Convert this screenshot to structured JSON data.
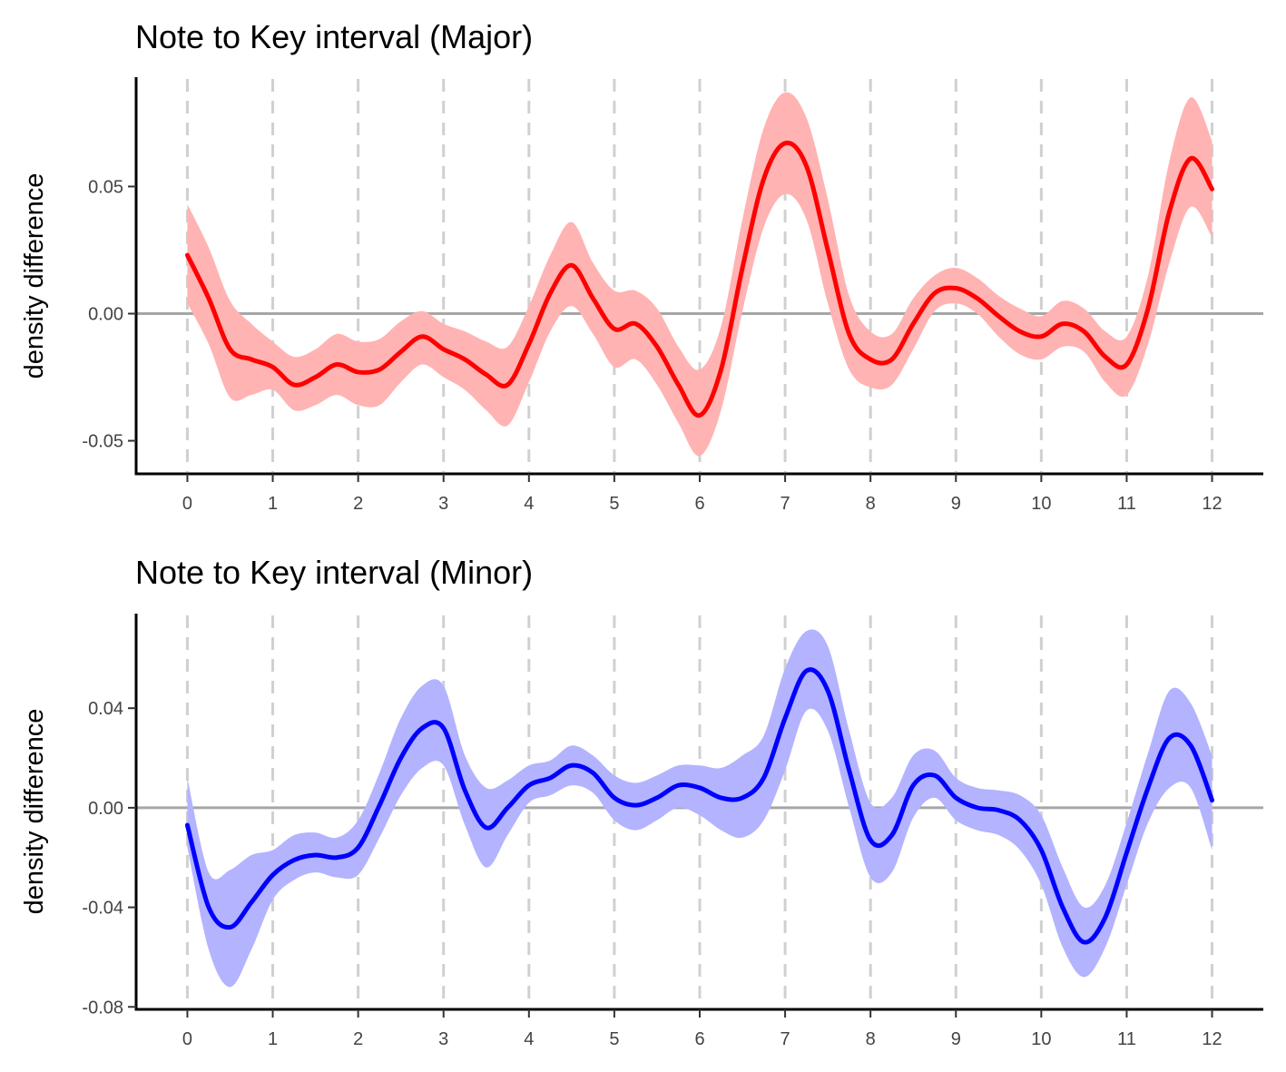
{
  "chart_data": [
    {
      "type": "line",
      "title": "Note to Key interval (Major)",
      "xlabel": "",
      "ylabel": "density difference",
      "xlim": [
        -0.6,
        12.6
      ],
      "ylim": [
        -0.063,
        0.093
      ],
      "x_ticks": [
        0,
        1,
        2,
        3,
        4,
        5,
        6,
        7,
        8,
        9,
        10,
        11,
        12
      ],
      "y_ticks": [
        -0.05,
        0.0,
        0.05
      ],
      "y_tick_labels": [
        "-0.05",
        "0.00",
        "0.05"
      ],
      "vertical_gridlines_at": [
        0,
        1,
        2,
        3,
        4,
        5,
        6,
        7,
        8,
        9,
        10,
        11,
        12
      ],
      "reference_line_y": 0,
      "colors": {
        "line": "#ff0000",
        "band": "#ffb3b3",
        "reference": "#a6a6a6",
        "grid": "#d0d0d0"
      },
      "series": [
        {
          "x": [
            0,
            0.25,
            0.5,
            0.75,
            1,
            1.25,
            1.5,
            1.75,
            2,
            2.25,
            2.5,
            2.75,
            3,
            3.25,
            3.5,
            3.75,
            4,
            4.25,
            4.5,
            4.75,
            5,
            5.25,
            5.5,
            5.75,
            6,
            6.25,
            6.5,
            6.75,
            7,
            7.25,
            7.5,
            7.75,
            8,
            8.25,
            8.5,
            8.75,
            9,
            9.25,
            9.5,
            9.75,
            10,
            10.25,
            10.5,
            10.75,
            11,
            11.25,
            11.5,
            11.75,
            12
          ],
          "y": [
            0.023,
            0.006,
            -0.014,
            -0.018,
            -0.021,
            -0.028,
            -0.025,
            -0.02,
            -0.023,
            -0.022,
            -0.015,
            -0.009,
            -0.014,
            -0.018,
            -0.024,
            -0.028,
            -0.012,
            0.008,
            0.019,
            0.006,
            -0.006,
            -0.004,
            -0.013,
            -0.028,
            -0.04,
            -0.022,
            0.018,
            0.053,
            0.067,
            0.058,
            0.025,
            -0.008,
            -0.018,
            -0.018,
            -0.004,
            0.008,
            0.01,
            0.006,
            -0.001,
            -0.007,
            -0.009,
            -0.004,
            -0.007,
            -0.017,
            -0.02,
            0.002,
            0.04,
            0.061,
            0.049
          ],
          "lower": [
            0.004,
            -0.012,
            -0.033,
            -0.032,
            -0.03,
            -0.038,
            -0.036,
            -0.032,
            -0.036,
            -0.036,
            -0.027,
            -0.02,
            -0.025,
            -0.03,
            -0.038,
            -0.044,
            -0.027,
            -0.007,
            0.003,
            -0.008,
            -0.021,
            -0.018,
            -0.028,
            -0.043,
            -0.056,
            -0.038,
            0.001,
            0.034,
            0.047,
            0.037,
            0.004,
            -0.022,
            -0.029,
            -0.028,
            -0.014,
            0.001,
            0.004,
            0.0,
            -0.009,
            -0.016,
            -0.018,
            -0.013,
            -0.015,
            -0.027,
            -0.032,
            -0.012,
            0.02,
            0.042,
            0.03
          ],
          "upper": [
            0.043,
            0.026,
            0.005,
            -0.004,
            -0.011,
            -0.017,
            -0.014,
            -0.008,
            -0.011,
            -0.01,
            -0.003,
            0.001,
            -0.004,
            -0.007,
            -0.011,
            -0.013,
            0.003,
            0.023,
            0.036,
            0.02,
            0.009,
            0.009,
            0.002,
            -0.013,
            -0.022,
            -0.005,
            0.037,
            0.073,
            0.087,
            0.077,
            0.045,
            0.007,
            -0.007,
            -0.008,
            0.006,
            0.015,
            0.018,
            0.014,
            0.007,
            0.002,
            -0.001,
            0.005,
            0.002,
            -0.007,
            -0.009,
            0.015,
            0.06,
            0.085,
            0.068
          ]
        }
      ]
    },
    {
      "type": "line",
      "title": "Note to Key interval (Minor)",
      "xlabel": "",
      "ylabel": "density difference",
      "xlim": [
        -0.6,
        12.6
      ],
      "ylim": [
        -0.081,
        0.078
      ],
      "x_ticks": [
        0,
        1,
        2,
        3,
        4,
        5,
        6,
        7,
        8,
        9,
        10,
        11,
        12
      ],
      "y_ticks": [
        -0.08,
        -0.04,
        0.0,
        0.04
      ],
      "y_tick_labels": [
        "-0.08",
        "-0.04",
        "0.00",
        "0.04"
      ],
      "vertical_gridlines_at": [
        0,
        1,
        2,
        3,
        4,
        5,
        6,
        7,
        8,
        9,
        10,
        11,
        12
      ],
      "reference_line_y": 0,
      "colors": {
        "line": "#0000ff",
        "band": "#b3b3ff",
        "reference": "#a6a6a6",
        "grid": "#d0d0d0"
      },
      "series": [
        {
          "x": [
            0,
            0.25,
            0.5,
            0.75,
            1,
            1.25,
            1.5,
            1.75,
            2,
            2.25,
            2.5,
            2.75,
            3,
            3.25,
            3.5,
            3.75,
            4,
            4.25,
            4.5,
            4.75,
            5,
            5.25,
            5.5,
            5.75,
            6,
            6.25,
            6.5,
            6.75,
            7,
            7.25,
            7.5,
            7.75,
            8,
            8.25,
            8.5,
            8.75,
            9,
            9.25,
            9.5,
            9.75,
            10,
            10.25,
            10.5,
            10.75,
            11,
            11.25,
            11.5,
            11.75,
            12
          ],
          "y": [
            -0.007,
            -0.04,
            -0.048,
            -0.038,
            -0.027,
            -0.021,
            -0.019,
            -0.02,
            -0.016,
            0.001,
            0.02,
            0.032,
            0.032,
            0.007,
            -0.008,
            0.0,
            0.009,
            0.012,
            0.017,
            0.014,
            0.004,
            0.001,
            0.004,
            0.009,
            0.008,
            0.004,
            0.004,
            0.012,
            0.036,
            0.055,
            0.047,
            0.015,
            -0.013,
            -0.011,
            0.009,
            0.013,
            0.004,
            0.0,
            -0.001,
            -0.005,
            -0.017,
            -0.04,
            -0.054,
            -0.044,
            -0.018,
            0.008,
            0.028,
            0.025,
            0.003
          ],
          "lower": [
            -0.016,
            -0.057,
            -0.072,
            -0.057,
            -0.037,
            -0.029,
            -0.026,
            -0.028,
            -0.027,
            -0.012,
            0.005,
            0.016,
            0.017,
            -0.007,
            -0.024,
            -0.011,
            0.002,
            0.005,
            0.009,
            0.006,
            -0.005,
            -0.009,
            -0.005,
            0.0,
            -0.003,
            -0.009,
            -0.012,
            -0.005,
            0.015,
            0.039,
            0.031,
            0.0,
            -0.028,
            -0.026,
            -0.004,
            0.004,
            -0.005,
            -0.009,
            -0.011,
            -0.017,
            -0.031,
            -0.056,
            -0.068,
            -0.056,
            -0.031,
            -0.006,
            0.008,
            0.008,
            -0.017
          ],
          "upper": [
            0.012,
            -0.026,
            -0.025,
            -0.019,
            -0.017,
            -0.011,
            -0.01,
            -0.012,
            -0.005,
            0.014,
            0.036,
            0.049,
            0.049,
            0.021,
            0.008,
            0.011,
            0.017,
            0.019,
            0.025,
            0.021,
            0.013,
            0.01,
            0.013,
            0.017,
            0.017,
            0.016,
            0.021,
            0.029,
            0.056,
            0.071,
            0.065,
            0.031,
            0.002,
            0.004,
            0.021,
            0.023,
            0.012,
            0.008,
            0.007,
            0.005,
            -0.003,
            -0.024,
            -0.04,
            -0.031,
            -0.006,
            0.022,
            0.047,
            0.042,
            0.021
          ]
        }
      ]
    }
  ]
}
